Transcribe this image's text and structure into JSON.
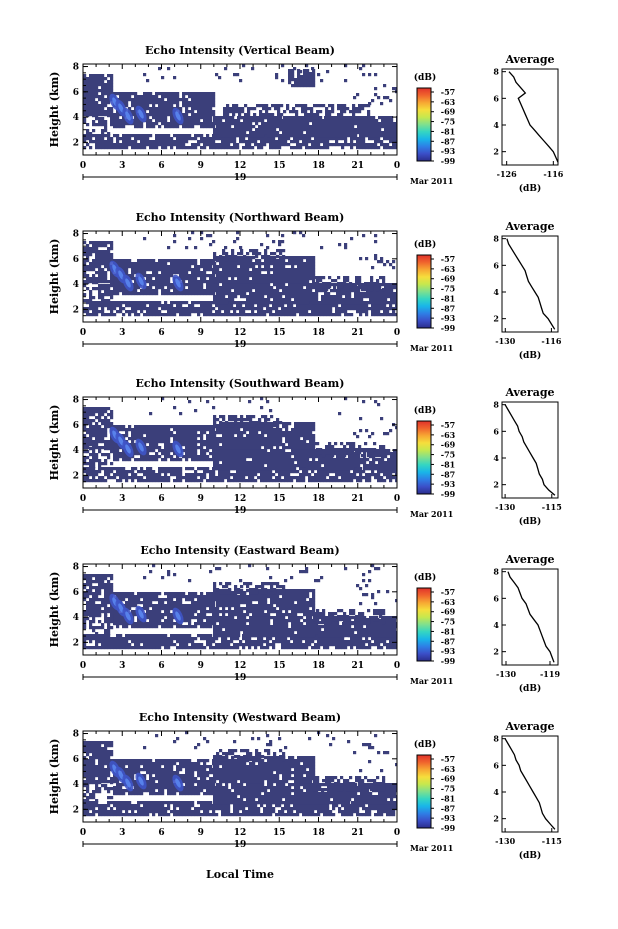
{
  "figure": {
    "xlabel": "Local Time",
    "date_label": "Mar 2011",
    "day_label": "19",
    "height_label": "Height (km)",
    "colorbar_unit": "(dB)",
    "avg_title": "Average",
    "avg_xlabel": "(dB)"
  },
  "colorbar": {
    "ticks": [
      "-57",
      "-63",
      "-69",
      "-75",
      "-81",
      "-87",
      "-93",
      "-99"
    ],
    "colors": [
      "#2b2d8c",
      "#3b4fc8",
      "#2e7fe6",
      "#19b6e8",
      "#34d6c2",
      "#7fe08e",
      "#c6e84e",
      "#f6de3c",
      "#f7a733",
      "#f0642d",
      "#e0322a"
    ]
  },
  "chart_data": [
    {
      "type": "heatmap",
      "title": "Echo Intensity (Vertical Beam)",
      "xlabel": "Local Time",
      "ylabel": "Height (km)",
      "xticks": [
        "0",
        "3",
        "6",
        "9",
        "12",
        "15",
        "18",
        "21",
        "0"
      ],
      "yticks": [
        "2",
        "4",
        "6",
        "8"
      ],
      "xlim": [
        0,
        24
      ],
      "ylim": [
        1,
        8.2
      ],
      "colorbar_ticks": [
        "-57",
        "-63",
        "-69",
        "-75",
        "-81",
        "-87",
        "-93",
        "-99"
      ],
      "average_profile": {
        "xticks": [
          "-126",
          "-116"
        ],
        "xlim": [
          -127,
          -115
        ],
        "ylim": [
          1,
          8.2
        ],
        "x": [
          -115,
          -115.5,
          -116,
          -117,
          -118,
          -119,
          -120,
          -121,
          -121.5,
          -122,
          -122.5,
          -123,
          -123.5,
          -122,
          -123,
          -124,
          -124.5,
          -125.5
        ],
        "y": [
          1.2,
          1.6,
          2.0,
          2.4,
          2.8,
          3.2,
          3.6,
          4.0,
          4.4,
          4.8,
          5.2,
          5.6,
          6.0,
          6.4,
          6.8,
          7.2,
          7.6,
          8.0
        ]
      }
    },
    {
      "type": "heatmap",
      "title": "Echo Intensity (Northward Beam)",
      "xlabel": "Local Time",
      "ylabel": "Height (km)",
      "xticks": [
        "0",
        "3",
        "6",
        "9",
        "12",
        "15",
        "18",
        "21",
        "0"
      ],
      "yticks": [
        "2",
        "4",
        "6",
        "8"
      ],
      "xlim": [
        0,
        24
      ],
      "ylim": [
        1,
        8.2
      ],
      "colorbar_ticks": [
        "-57",
        "-63",
        "-69",
        "-75",
        "-81",
        "-87",
        "-93",
        "-99"
      ],
      "average_profile": {
        "xticks": [
          "-130",
          "-116"
        ],
        "xlim": [
          -131,
          -114
        ],
        "ylim": [
          1,
          8.2
        ],
        "x": [
          -115,
          -116,
          -117,
          -118.5,
          -119,
          -119.5,
          -120,
          -121,
          -122,
          -123,
          -123.5,
          -124,
          -125,
          -126,
          -127,
          -128,
          -129,
          -129.5
        ],
        "y": [
          1.2,
          1.6,
          2.0,
          2.4,
          2.8,
          3.2,
          3.6,
          4.0,
          4.4,
          4.8,
          5.2,
          5.6,
          6.0,
          6.4,
          6.8,
          7.2,
          7.6,
          8.0
        ]
      }
    },
    {
      "type": "heatmap",
      "title": "Echo Intensity (Southward Beam)",
      "xlabel": "Local Time",
      "ylabel": "Height (km)",
      "xticks": [
        "0",
        "3",
        "6",
        "9",
        "12",
        "15",
        "18",
        "21",
        "0"
      ],
      "yticks": [
        "2",
        "4",
        "6",
        "8"
      ],
      "xlim": [
        0,
        24
      ],
      "ylim": [
        1,
        8.2
      ],
      "colorbar_ticks": [
        "-57",
        "-63",
        "-69",
        "-75",
        "-81",
        "-87",
        "-93",
        "-99"
      ],
      "average_profile": {
        "xticks": [
          "-130",
          "-115"
        ],
        "xlim": [
          -131,
          -113
        ],
        "ylim": [
          1,
          8.2
        ],
        "x": [
          -114,
          -116,
          -117.5,
          -118,
          -119,
          -119.5,
          -120,
          -121,
          -122,
          -123,
          -124,
          -124.5,
          -125.5,
          -126,
          -127,
          -128,
          -129,
          -130
        ],
        "y": [
          1.2,
          1.6,
          2.0,
          2.4,
          2.8,
          3.2,
          3.6,
          4.0,
          4.4,
          4.8,
          5.2,
          5.6,
          6.0,
          6.4,
          6.8,
          7.2,
          7.6,
          8.0
        ]
      }
    },
    {
      "type": "heatmap",
      "title": "Echo Intensity (Eastward Beam)",
      "xlabel": "Local Time",
      "ylabel": "Height (km)",
      "xticks": [
        "0",
        "3",
        "6",
        "9",
        "12",
        "15",
        "18",
        "21",
        "0"
      ],
      "yticks": [
        "2",
        "4",
        "6",
        "8"
      ],
      "xlim": [
        0,
        24
      ],
      "ylim": [
        1,
        8.2
      ],
      "colorbar_ticks": [
        "-57",
        "-63",
        "-69",
        "-75",
        "-81",
        "-87",
        "-93",
        "-99"
      ],
      "average_profile": {
        "xticks": [
          "-130",
          "-119"
        ],
        "xlim": [
          -131,
          -117
        ],
        "ylim": [
          1,
          8.2
        ],
        "x": [
          -118,
          -118.5,
          -119,
          -120,
          -120.5,
          -121,
          -121.5,
          -122,
          -123,
          -124,
          -124.5,
          -125,
          -126,
          -126.5,
          -127,
          -128,
          -129,
          -129.5
        ],
        "y": [
          1.2,
          1.6,
          2.0,
          2.4,
          2.8,
          3.2,
          3.6,
          4.0,
          4.4,
          4.8,
          5.2,
          5.6,
          6.0,
          6.4,
          6.8,
          7.2,
          7.6,
          8.0
        ]
      }
    },
    {
      "type": "heatmap",
      "title": "Echo Intensity (Westward Beam)",
      "xlabel": "Local Time",
      "ylabel": "Height (km)",
      "xticks": [
        "0",
        "3",
        "6",
        "9",
        "12",
        "15",
        "18",
        "21",
        "0"
      ],
      "yticks": [
        "2",
        "4",
        "6",
        "8"
      ],
      "xlim": [
        0,
        24
      ],
      "ylim": [
        1,
        8.2
      ],
      "colorbar_ticks": [
        "-57",
        "-63",
        "-69",
        "-75",
        "-81",
        "-87",
        "-93",
        "-99"
      ],
      "average_profile": {
        "xticks": [
          "-130",
          "-115"
        ],
        "xlim": [
          -131,
          -113
        ],
        "ylim": [
          1,
          8.2
        ],
        "x": [
          -114,
          -115.5,
          -117,
          -118,
          -118.5,
          -119,
          -120,
          -121,
          -122,
          -123,
          -124,
          -125,
          -125.5,
          -126.5,
          -127,
          -128,
          -129,
          -130
        ],
        "y": [
          1.2,
          1.6,
          2.0,
          2.4,
          2.8,
          3.2,
          3.6,
          4.0,
          4.4,
          4.8,
          5.2,
          5.6,
          6.0,
          6.4,
          6.8,
          7.2,
          7.6,
          8.0
        ]
      }
    }
  ]
}
